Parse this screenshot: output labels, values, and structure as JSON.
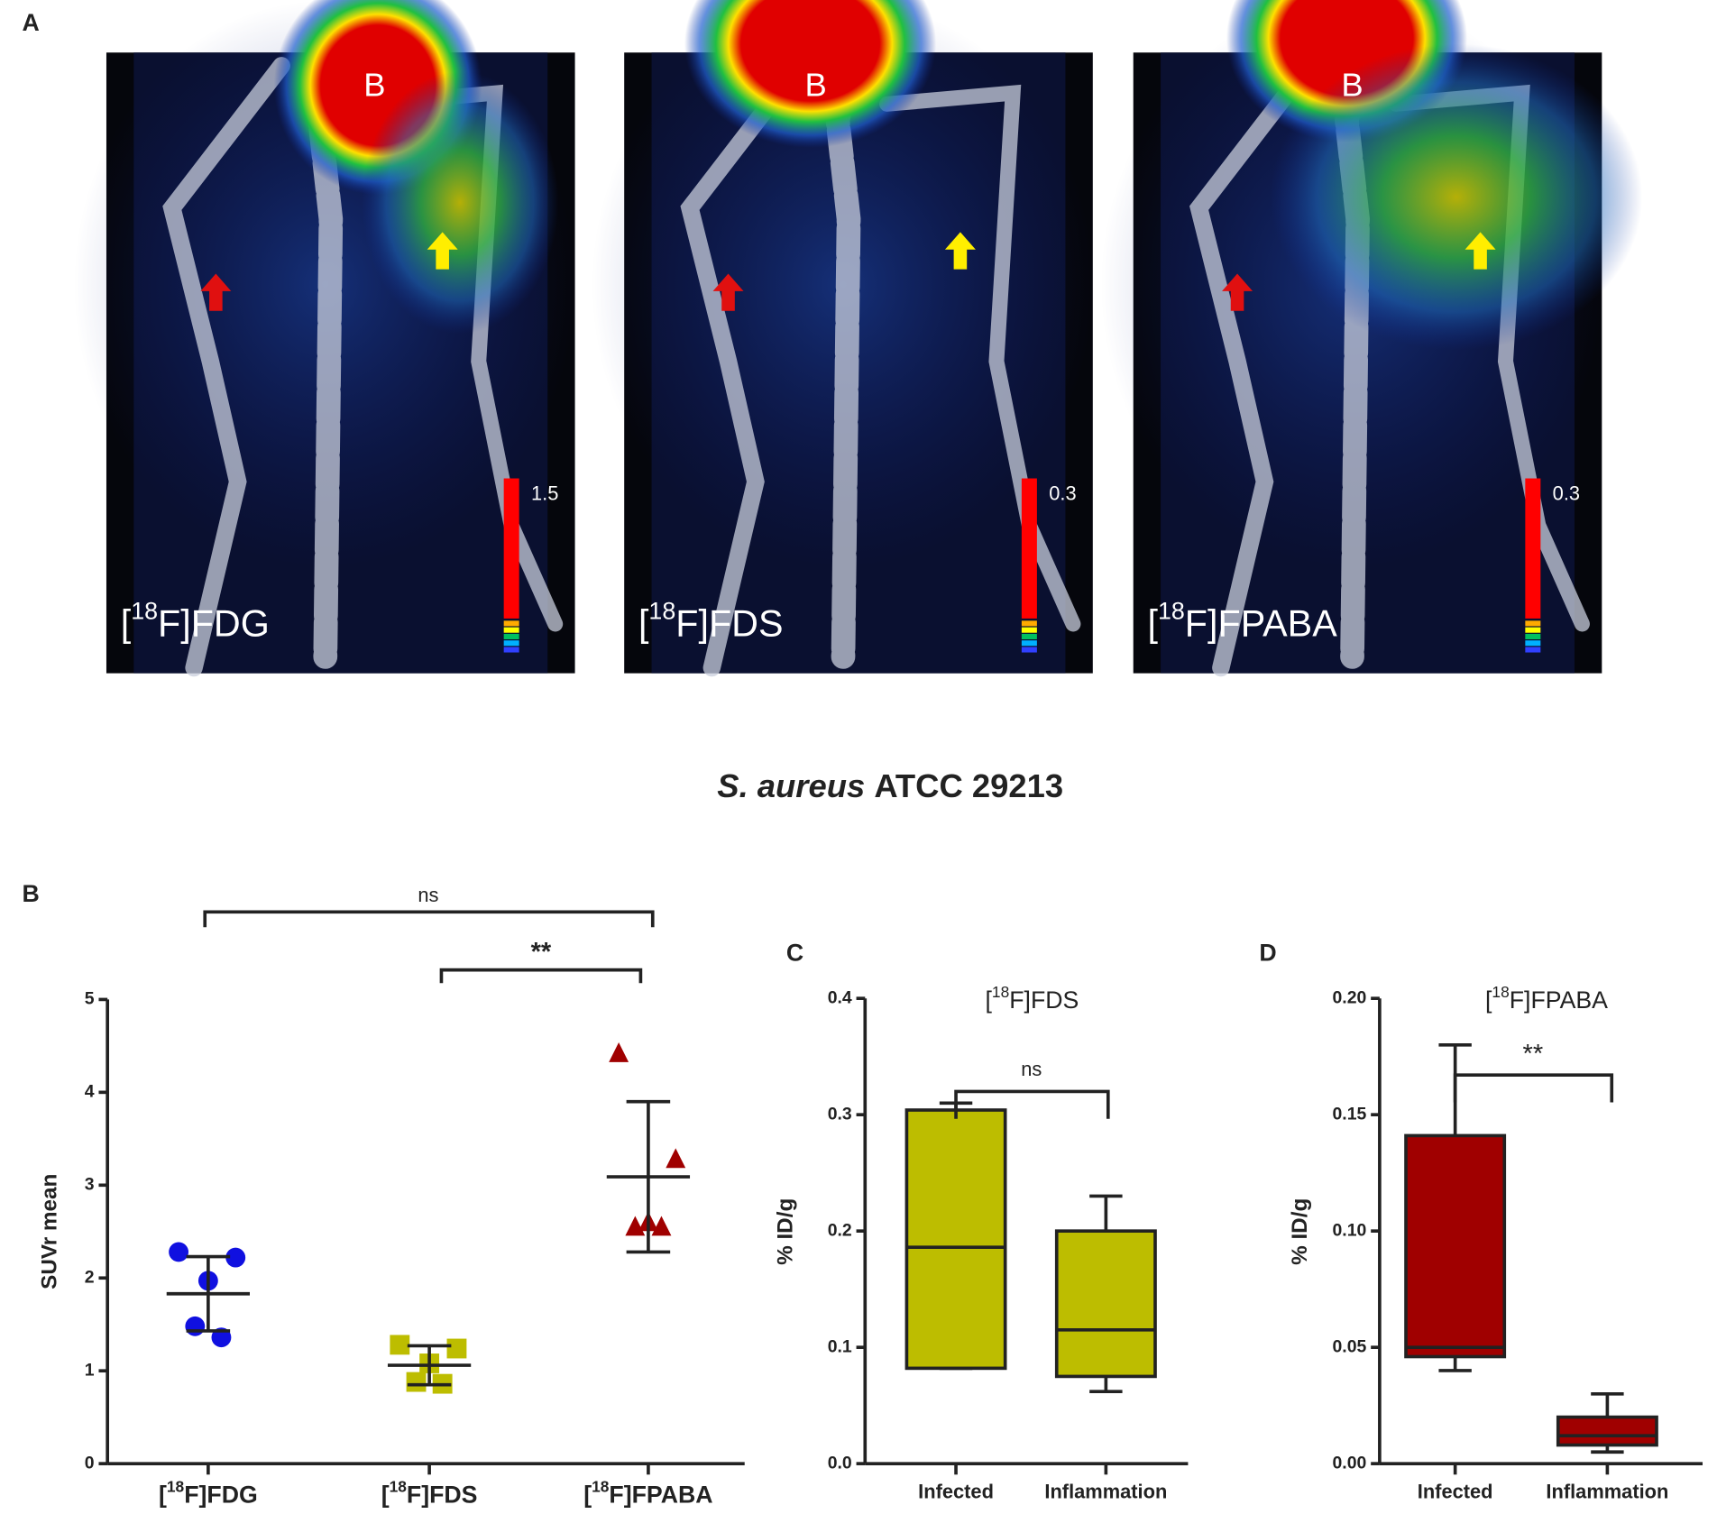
{
  "panel_labels": [
    "A",
    "B",
    "C",
    "D"
  ],
  "images": [
    {
      "tracer": {
        "pre": "[",
        "sup": "18",
        "post": "F]FDG"
      },
      "region_label": "B",
      "scale_max": "1.5"
    },
    {
      "tracer": {
        "pre": "[",
        "sup": "18",
        "post": "F]FDS"
      },
      "region_label": "B",
      "scale_max": "0.3"
    },
    {
      "tracer": {
        "pre": "[",
        "sup": "18",
        "post": "F]FPABA"
      },
      "region_label": "B",
      "scale_max": "0.3"
    }
  ],
  "title": {
    "italic": "S. aureus",
    "rest": "ATCC 29213"
  },
  "chart_data": [
    {
      "type": "dot_plot",
      "ylabel": "SUVr mean",
      "categories": [
        {
          "pre": "[",
          "sup": "18",
          "post": "F]FDG"
        },
        {
          "pre": "[",
          "sup": "18",
          "post": "F]FDS"
        },
        {
          "pre": "[",
          "sup": "18",
          "post": "F]FPABA"
        }
      ],
      "values": [
        [
          2.28,
          2.22,
          1.97,
          1.48,
          1.36
        ],
        [
          1.28,
          1.24,
          1.08,
          0.88,
          0.86
        ],
        [
          4.42,
          3.28,
          2.6,
          2.55,
          2.55
        ]
      ],
      "mean": [
        1.83,
        1.06,
        3.09
      ],
      "sd": [
        0.4,
        0.21,
        0.81
      ],
      "colors": [
        "#1010e0",
        "#bdbd00",
        "#a00000"
      ],
      "markers": [
        "circle",
        "square",
        "triangle"
      ],
      "ylim": [
        0,
        5
      ],
      "yticks": [
        0,
        1,
        2,
        3,
        4,
        5
      ],
      "annotations": [
        "ns",
        "**"
      ]
    },
    {
      "type": "box",
      "title": {
        "pre": "[",
        "sup": "18",
        "post": "F]FDS"
      },
      "ylabel": "% ID/g",
      "categories": [
        "Infected",
        "Inflammation"
      ],
      "min": [
        0.082,
        0.062
      ],
      "q1": [
        0.082,
        0.075
      ],
      "median": [
        0.186,
        0.115
      ],
      "q3": [
        0.304,
        0.2
      ],
      "max": [
        0.31,
        0.23
      ],
      "color": "#bdbd00",
      "ylim": [
        0,
        0.4
      ],
      "yticks": [
        {
          "value": 0,
          "label": "0.0"
        },
        0.1,
        0.2,
        0.3,
        0.4
      ],
      "annotations": [
        "ns"
      ]
    },
    {
      "type": "box",
      "title": {
        "pre": "[",
        "sup": "18",
        "post": "F]FPABA"
      },
      "ylabel": "% ID/g",
      "categories": [
        "Infected",
        "Inflammation"
      ],
      "min": [
        0.04,
        0.005
      ],
      "q1": [
        0.046,
        0.008
      ],
      "median": [
        0.05,
        0.012
      ],
      "q3": [
        0.141,
        0.02
      ],
      "max": [
        0.18,
        0.03
      ],
      "color": "#a00000",
      "ylim": [
        0,
        0.2
      ],
      "yticks": [
        {
          "value": 0,
          "label": "0.00"
        },
        0.05,
        {
          "value": 0.1,
          "label": "0.10"
        },
        0.15,
        {
          "value": 0.2,
          "label": "0.20"
        }
      ],
      "annotations": [
        "**"
      ]
    }
  ]
}
